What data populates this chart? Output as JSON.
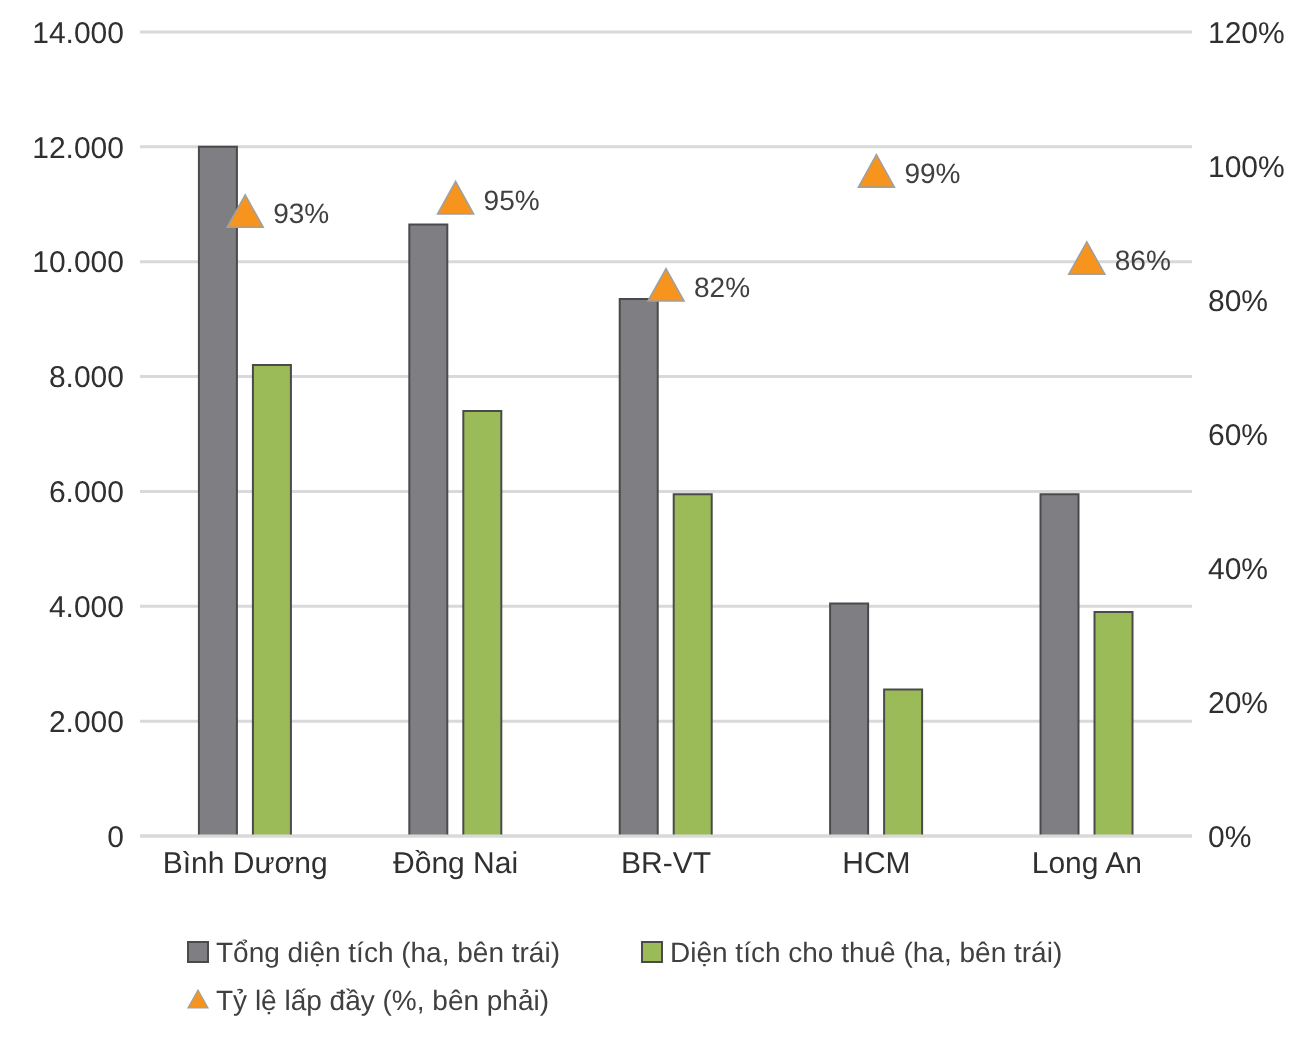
{
  "chart_data": {
    "type": "bar",
    "categories": [
      "Bình Dương",
      "Đồng Nai",
      "BR-VT",
      "HCM",
      "Long An"
    ],
    "series": [
      {
        "name": "Tổng diện tích (ha, bên trái)",
        "color": "#7f7f83",
        "values": [
          12000,
          10650,
          9350,
          4050,
          5950
        ]
      },
      {
        "name": "Diện tích cho thuê (ha, bên trái)",
        "color": "#9bbb59",
        "values": [
          8200,
          7400,
          5950,
          2550,
          3900
        ]
      },
      {
        "name": "Tỷ lệ lấp đầy (%, bên phải)",
        "type": "scatter",
        "axis": "y2",
        "marker": "triangle",
        "color": "#f7941d",
        "values": [
          93,
          95,
          82,
          99,
          86
        ],
        "value_labels": [
          "93%",
          "95%",
          "82%",
          "99%",
          "86%"
        ]
      }
    ],
    "ylim": [
      0,
      14000
    ],
    "yticks": [
      {
        "value": 0,
        "label": "0"
      },
      {
        "value": 2000,
        "label": "2.000"
      },
      {
        "value": 4000,
        "label": "4.000"
      },
      {
        "value": 6000,
        "label": "6.000"
      },
      {
        "value": 8000,
        "label": "8.000"
      },
      {
        "value": 10000,
        "label": "10.000"
      },
      {
        "value": 12000,
        "label": "12.000"
      },
      {
        "value": 14000,
        "label": "14.000"
      }
    ],
    "y2lim": [
      0,
      120
    ],
    "y2ticks": [
      {
        "value": 0,
        "label": "0%"
      },
      {
        "value": 20,
        "label": "20%"
      },
      {
        "value": 40,
        "label": "40%"
      },
      {
        "value": 60,
        "label": "60%"
      },
      {
        "value": 80,
        "label": "80%"
      },
      {
        "value": 100,
        "label": "100%"
      },
      {
        "value": 120,
        "label": "120%"
      }
    ],
    "grid": "y",
    "legend": "bottom"
  }
}
